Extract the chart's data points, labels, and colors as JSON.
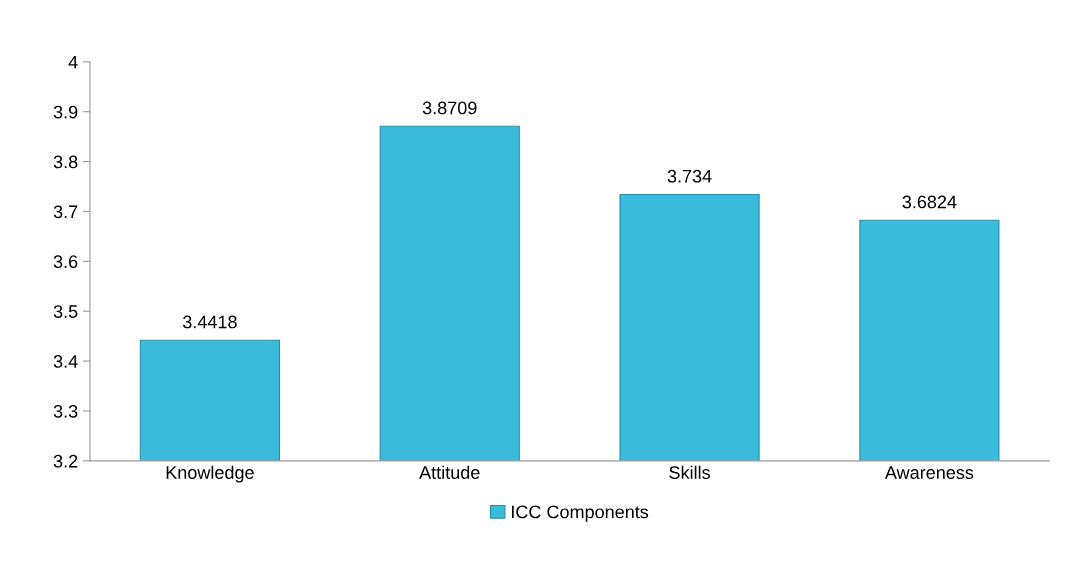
{
  "chart_data": {
    "type": "bar",
    "categories": [
      "Knowledge",
      "Attitude",
      "Skills",
      "Awareness"
    ],
    "series": [
      {
        "name": "ICC Components",
        "color": "#3bbbdb",
        "values": [
          3.4418,
          3.8709,
          3.734,
          3.6824
        ]
      }
    ],
    "ylim": [
      3.2,
      4
    ],
    "yticks": [
      3.2,
      3.3,
      3.4,
      3.5,
      3.6,
      3.7,
      3.8,
      3.9,
      4
    ],
    "data_labels": true,
    "grid": false,
    "legend": "bottom"
  }
}
